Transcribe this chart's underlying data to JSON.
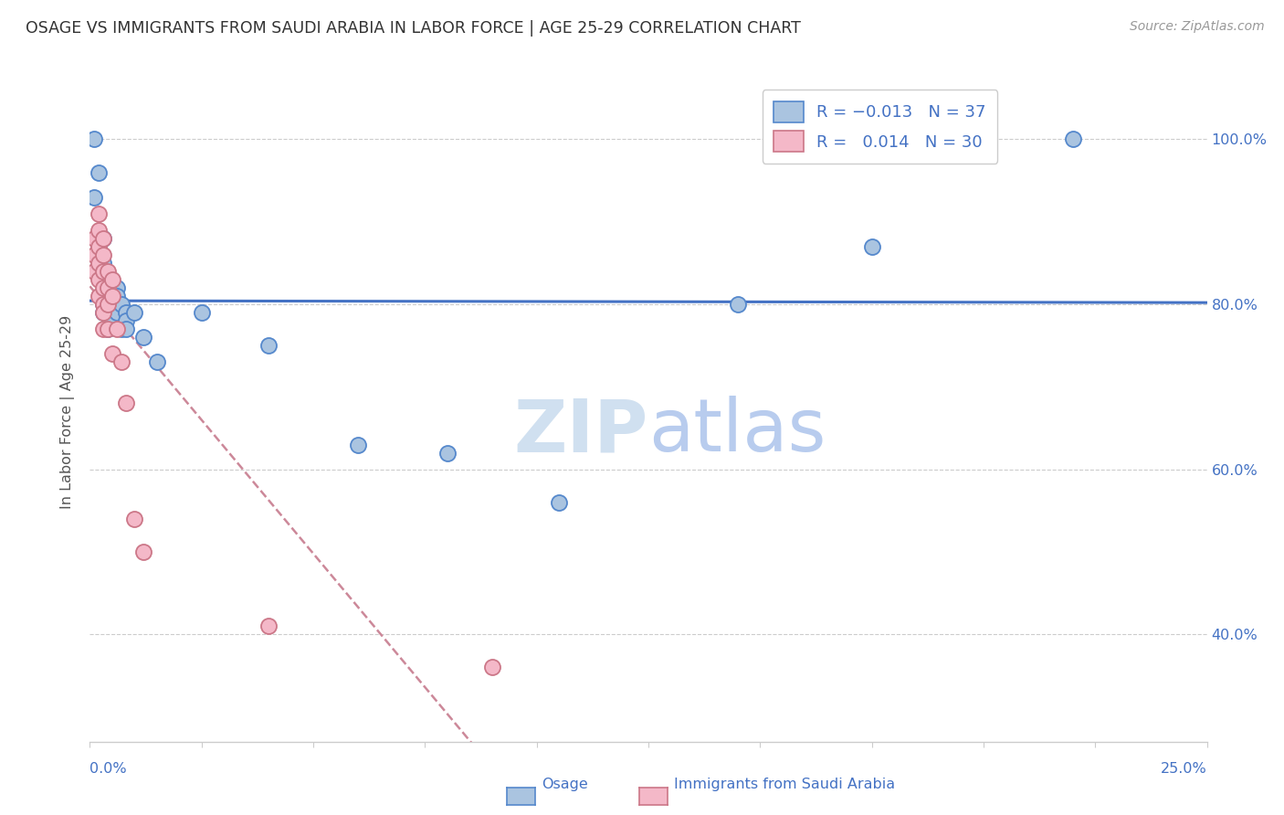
{
  "title": "OSAGE VS IMMIGRANTS FROM SAUDI ARABIA IN LABOR FORCE | AGE 25-29 CORRELATION CHART",
  "source": "Source: ZipAtlas.com",
  "ylabel": "In Labor Force | Age 25-29",
  "xlim": [
    0.0,
    0.25
  ],
  "ylim": [
    0.27,
    1.07
  ],
  "yticks": [
    0.4,
    0.6,
    0.8,
    1.0
  ],
  "ytick_labels": [
    "40.0%",
    "60.0%",
    "80.0%",
    "100.0%"
  ],
  "osage_color": "#aac4e0",
  "osage_edge": "#5588cc",
  "saudi_color": "#f4b8c8",
  "saudi_edge": "#cc7788",
  "trendline_osage_color": "#4472c4",
  "trendline_saudi_color": "#cc8899",
  "watermark_color": "#d0e0f0",
  "background_color": "#ffffff",
  "grid_color": "#cccccc",
  "label_color": "#4472c4",
  "title_color": "#333333",
  "source_color": "#999999",
  "osage_x": [
    0.001,
    0.001,
    0.002,
    0.002,
    0.002,
    0.003,
    0.003,
    0.003,
    0.003,
    0.003,
    0.004,
    0.004,
    0.004,
    0.004,
    0.005,
    0.005,
    0.005,
    0.005,
    0.006,
    0.006,
    0.006,
    0.007,
    0.007,
    0.008,
    0.008,
    0.008,
    0.01,
    0.012,
    0.015,
    0.025,
    0.04,
    0.06,
    0.08,
    0.105,
    0.145,
    0.175,
    0.22
  ],
  "osage_y": [
    1.0,
    0.93,
    0.96,
    0.87,
    0.84,
    0.88,
    0.85,
    0.83,
    0.8,
    0.79,
    0.82,
    0.8,
    0.79,
    0.77,
    0.82,
    0.8,
    0.79,
    0.78,
    0.82,
    0.81,
    0.79,
    0.8,
    0.77,
    0.79,
    0.78,
    0.77,
    0.79,
    0.76,
    0.73,
    0.79,
    0.75,
    0.63,
    0.62,
    0.56,
    0.8,
    0.87,
    1.0
  ],
  "saudi_x": [
    0.001,
    0.001,
    0.001,
    0.002,
    0.002,
    0.002,
    0.002,
    0.002,
    0.002,
    0.003,
    0.003,
    0.003,
    0.003,
    0.003,
    0.003,
    0.003,
    0.004,
    0.004,
    0.004,
    0.004,
    0.005,
    0.005,
    0.005,
    0.006,
    0.007,
    0.008,
    0.01,
    0.012,
    0.04,
    0.09
  ],
  "saudi_y": [
    0.88,
    0.86,
    0.84,
    0.91,
    0.89,
    0.87,
    0.85,
    0.83,
    0.81,
    0.88,
    0.86,
    0.84,
    0.82,
    0.8,
    0.79,
    0.77,
    0.84,
    0.82,
    0.8,
    0.77,
    0.83,
    0.81,
    0.74,
    0.77,
    0.73,
    0.68,
    0.54,
    0.5,
    0.41,
    0.36
  ]
}
